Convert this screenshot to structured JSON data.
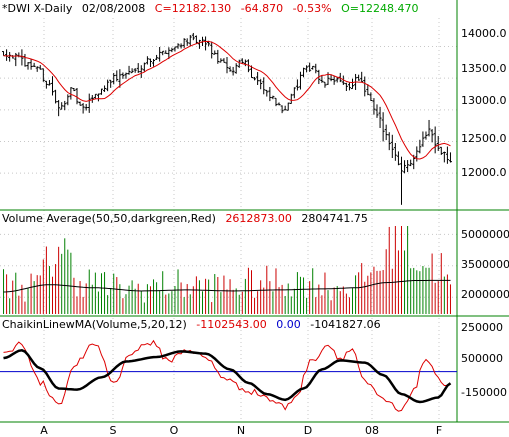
{
  "colors": {
    "price_bar": "#000000",
    "price_ma": "#dd0000",
    "header_black": "#000000",
    "header_red": "#dd0000",
    "header_green": "#00aa00",
    "header_blue": "#0000cc",
    "vol_up": "#008000",
    "vol_down": "#cc0000",
    "vol_avg_line": "#000000",
    "chaikin_line": "#dd0000",
    "chaikin_ma": "#000000",
    "zero_line": "#0000cc",
    "panel_separator": "#008000"
  },
  "panels": {
    "price": {
      "header": {
        "symbol": "*DWI X-Daily",
        "date": "02/08/2008",
        "close": "C=12182.130",
        "change": "-64.870",
        "change_pct": "-0.53%",
        "open": "O=12248.470"
      },
      "y_ticks": [
        "14000.0",
        "13500.0",
        "13000.0",
        "12500.0",
        "12000.0"
      ]
    },
    "volume": {
      "header": {
        "label": "Volume Average(50,50,darkgreen,Red)",
        "value1": "2612873.00",
        "value2": "2804741.75"
      },
      "y_ticks": [
        "5000000",
        "3500000",
        "2000000"
      ]
    },
    "chaikin": {
      "header": {
        "label": "ChaikinLinewMA(Volume,5,20,12)",
        "value1": "-1102543.00",
        "value2": "0.00",
        "value3": "-1041827.06"
      },
      "y_ticks": [
        "250000",
        "500000",
        "-150000"
      ]
    }
  },
  "x_axis": {
    "labels": [
      "A",
      "S",
      "O",
      "N",
      "D",
      "08",
      "F"
    ]
  },
  "chart_data": [
    {
      "type": "ohlc",
      "title": "*DWI X-Daily",
      "ylim": [
        11450,
        14450
      ],
      "approx_price_path_keypoints": [
        [
          0,
          13900
        ],
        [
          10,
          13700
        ],
        [
          15,
          13400
        ],
        [
          18,
          13000
        ],
        [
          22,
          13300
        ],
        [
          26,
          13000
        ],
        [
          30,
          13250
        ],
        [
          36,
          13500
        ],
        [
          42,
          13600
        ],
        [
          48,
          13800
        ],
        [
          54,
          13950
        ],
        [
          60,
          14100
        ],
        [
          66,
          14050
        ],
        [
          70,
          13800
        ],
        [
          74,
          13600
        ],
        [
          78,
          13800
        ],
        [
          82,
          13500
        ],
        [
          87,
          13200
        ],
        [
          91,
          13000
        ],
        [
          95,
          13300
        ],
        [
          98,
          13600
        ],
        [
          101,
          13700
        ],
        [
          104,
          13400
        ],
        [
          108,
          13500
        ],
        [
          112,
          13350
        ],
        [
          116,
          13500
        ],
        [
          119,
          13200
        ],
        [
          122,
          12900
        ],
        [
          125,
          12600
        ],
        [
          128,
          12300
        ],
        [
          130,
          12050
        ],
        [
          133,
          12200
        ],
        [
          136,
          12450
        ],
        [
          139,
          12700
        ],
        [
          141,
          12500
        ],
        [
          143,
          12350
        ],
        [
          146,
          12180
        ]
      ],
      "moving_average": {
        "name": "MA",
        "color": "#dd0000"
      },
      "y_ticks": [
        14000,
        13500,
        13000,
        12500,
        12000
      ]
    },
    {
      "type": "bar",
      "title": "Volume Average(50,50,darkgreen,Red)",
      "ylim": [
        1200000,
        5400000
      ],
      "approx_volume_keypoints": [
        [
          0,
          2700000
        ],
        [
          10,
          2500000
        ],
        [
          15,
          3600000
        ],
        [
          18,
          4500000
        ],
        [
          25,
          2800000
        ],
        [
          40,
          2400000
        ],
        [
          55,
          2600000
        ],
        [
          70,
          2500000
        ],
        [
          85,
          2700000
        ],
        [
          100,
          2800000
        ],
        [
          108,
          2500000
        ],
        [
          115,
          2600000
        ],
        [
          120,
          3200000
        ],
        [
          125,
          3900000
        ],
        [
          128,
          5100000
        ],
        [
          130,
          5400000
        ],
        [
          133,
          4200000
        ],
        [
          137,
          3600000
        ],
        [
          142,
          3500000
        ],
        [
          146,
          2612873
        ]
      ],
      "volume_average_keypoints": [
        [
          0,
          2250000
        ],
        [
          15,
          2600000
        ],
        [
          30,
          2450000
        ],
        [
          45,
          2300000
        ],
        [
          60,
          2350000
        ],
        [
          75,
          2300000
        ],
        [
          90,
          2350000
        ],
        [
          105,
          2400000
        ],
        [
          115,
          2450000
        ],
        [
          125,
          2700000
        ],
        [
          135,
          2800000
        ],
        [
          146,
          2804741.75
        ]
      ],
      "y_ticks": [
        5000000,
        3500000,
        2000000
      ]
    },
    {
      "type": "line",
      "title": "ChaikinLinewMA(Volume,5,20,12)",
      "ylim": [
        -4300000,
        3700000
      ],
      "series": [
        {
          "name": "ChaikinLine",
          "color": "#dd0000",
          "keypoints": [
            [
              0,
              1500000
            ],
            [
              6,
              2500000
            ],
            [
              12,
              -1000000
            ],
            [
              18,
              -2800000
            ],
            [
              24,
              800000
            ],
            [
              30,
              2500000
            ],
            [
              36,
              -1000000
            ],
            [
              42,
              1800000
            ],
            [
              48,
              2600000
            ],
            [
              54,
              1000000
            ],
            [
              60,
              2000000
            ],
            [
              66,
              1200000
            ],
            [
              72,
              -500000
            ],
            [
              78,
              -1500000
            ],
            [
              84,
              -2000000
            ],
            [
              88,
              -2600000
            ],
            [
              92,
              -3200000
            ],
            [
              96,
              -2000000
            ],
            [
              100,
              800000
            ],
            [
              106,
              2400000
            ],
            [
              110,
              1200000
            ],
            [
              114,
              2000000
            ],
            [
              118,
              -1000000
            ],
            [
              124,
              -2500000
            ],
            [
              130,
              -3600000
            ],
            [
              134,
              -1500000
            ],
            [
              138,
              1200000
            ],
            [
              142,
              -800000
            ],
            [
              146,
              -1102543
            ]
          ]
        },
        {
          "name": "MA",
          "color": "#000000",
          "keypoints": [
            [
              0,
              1200000
            ],
            [
              6,
              1900000
            ],
            [
              12,
              300000
            ],
            [
              18,
              -1500000
            ],
            [
              24,
              -1600000
            ],
            [
              32,
              -500000
            ],
            [
              40,
              900000
            ],
            [
              50,
              1300000
            ],
            [
              58,
              1800000
            ],
            [
              66,
              1600000
            ],
            [
              74,
              200000
            ],
            [
              80,
              -1000000
            ],
            [
              86,
              -2000000
            ],
            [
              92,
              -2500000
            ],
            [
              98,
              -1500000
            ],
            [
              104,
              200000
            ],
            [
              110,
              1000000
            ],
            [
              118,
              800000
            ],
            [
              124,
              -300000
            ],
            [
              130,
              -2000000
            ],
            [
              136,
              -2700000
            ],
            [
              142,
              -2300000
            ],
            [
              146,
              -1041827.06
            ]
          ]
        }
      ],
      "zero_line": {
        "value": 0,
        "color": "#0000cc"
      },
      "y_ticks": [
        250000,
        500000,
        -150000
      ]
    }
  ]
}
